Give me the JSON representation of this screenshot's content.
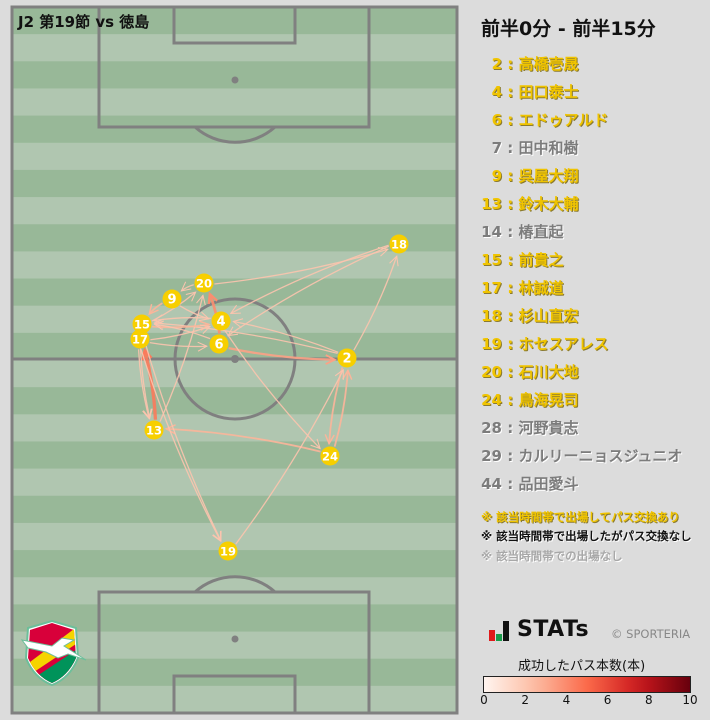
{
  "match_title": "J2 第19節 vs 徳島",
  "period": "前半0分 - 前半15分",
  "players": [
    {
      "num": "2",
      "name": "高橋壱晟",
      "status": "active"
    },
    {
      "num": "4",
      "name": "田口泰士",
      "status": "active"
    },
    {
      "num": "6",
      "name": "エドゥアルド",
      "status": "active"
    },
    {
      "num": "7",
      "name": "田中和樹",
      "status": "inactive"
    },
    {
      "num": "9",
      "name": "呉屋大翔",
      "status": "active"
    },
    {
      "num": "13",
      "name": "鈴木大輔",
      "status": "active"
    },
    {
      "num": "14",
      "name": "椿直起",
      "status": "inactive"
    },
    {
      "num": "15",
      "name": "前貴之",
      "status": "active"
    },
    {
      "num": "17",
      "name": "林誠道",
      "status": "active"
    },
    {
      "num": "18",
      "name": "杉山直宏",
      "status": "active"
    },
    {
      "num": "19",
      "name": "ホセスアレス",
      "status": "active"
    },
    {
      "num": "20",
      "name": "石川大地",
      "status": "active"
    },
    {
      "num": "24",
      "name": "鳥海晃司",
      "status": "active"
    },
    {
      "num": "28",
      "name": "河野貴志",
      "status": "inactive"
    },
    {
      "num": "29",
      "name": "カルリーニョスジュニオ",
      "status": "inactive"
    },
    {
      "num": "44",
      "name": "品田愛斗",
      "status": "inactive"
    }
  ],
  "notes": {
    "played_with_passes": "※ 該当時間帯で出場してパス交換あり",
    "played_no_passes": "※ 該当時間帯で出場したがパス交換なし",
    "not_played": "※ 該当時間帯での出場なし"
  },
  "brand": {
    "stats": "STATs",
    "copyright": "© SPORTERIA"
  },
  "colorbar": {
    "title": "成功したパス本数(本)",
    "min": 0,
    "max": 10,
    "ticks": [
      "0",
      "2",
      "4",
      "6",
      "8",
      "10"
    ]
  },
  "colors": {
    "active": "#f0c400",
    "inactive": "#7c7c7c",
    "marker": "#f7cf00",
    "pitch_dark": "#98b898",
    "pitch_light": "#b0c6b0",
    "line": "#808080"
  },
  "pass_network": {
    "nodes": [
      "2",
      "4",
      "6",
      "9",
      "13",
      "15",
      "17",
      "18",
      "19",
      "20",
      "24"
    ],
    "passes": [
      {
        "from": "20",
        "to": "18",
        "count": 1
      },
      {
        "from": "18",
        "to": "4",
        "count": 1
      },
      {
        "from": "18",
        "to": "6",
        "count": 1
      },
      {
        "from": "2",
        "to": "18",
        "count": 1
      },
      {
        "from": "6",
        "to": "2",
        "count": 3
      },
      {
        "from": "2",
        "to": "4",
        "count": 1
      },
      {
        "from": "2",
        "to": "15",
        "count": 1
      },
      {
        "from": "17",
        "to": "6",
        "count": 1
      },
      {
        "from": "6",
        "to": "20",
        "count": 4
      },
      {
        "from": "13",
        "to": "17",
        "count": 5
      },
      {
        "from": "17",
        "to": "13",
        "count": 1
      },
      {
        "from": "15",
        "to": "13",
        "count": 1
      },
      {
        "from": "24",
        "to": "13",
        "count": 2
      },
      {
        "from": "2",
        "to": "24",
        "count": 2
      },
      {
        "from": "24",
        "to": "2",
        "count": 2
      },
      {
        "from": "19",
        "to": "2",
        "count": 1
      },
      {
        "from": "17",
        "to": "19",
        "count": 1
      },
      {
        "from": "15",
        "to": "19",
        "count": 1
      },
      {
        "from": "13",
        "to": "20",
        "count": 1
      },
      {
        "from": "4",
        "to": "24",
        "count": 1
      },
      {
        "from": "9",
        "to": "15",
        "count": 2
      },
      {
        "from": "15",
        "to": "4",
        "count": 2
      },
      {
        "from": "15",
        "to": "20",
        "count": 1
      },
      {
        "from": "17",
        "to": "4",
        "count": 1
      },
      {
        "from": "20",
        "to": "9",
        "count": 1
      },
      {
        "from": "4",
        "to": "15",
        "count": 1
      },
      {
        "from": "9",
        "to": "4",
        "count": 1
      },
      {
        "from": "6",
        "to": "15",
        "count": 1
      }
    ]
  }
}
